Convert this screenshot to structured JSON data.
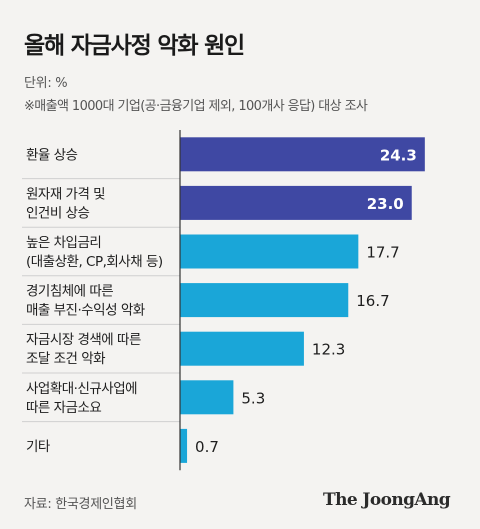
{
  "title": "올해 자금사정 악화 원인",
  "unit": "단위: %",
  "note": "※매출액 1000대 기업(공·금융기업 제외, 100개사 응답) 대상 조사",
  "source": "자료: 한국경제인협회",
  "brand": "The JoongAng",
  "colors": {
    "highlight": "#3f48a3",
    "normal": "#1aa6d8",
    "divider": "#cfcfcf",
    "axis": "#333333"
  },
  "chart_data": {
    "type": "bar",
    "orientation": "horizontal",
    "categories": [
      [
        "환율 상승"
      ],
      [
        "원자재 가격 및",
        "인건비 상승"
      ],
      [
        "높은 차입금리",
        "(대출상환, CP,회사채 등)"
      ],
      [
        "경기침체에 따른",
        "매출 부진·수익성 악화"
      ],
      [
        "자금시장 경색에 따른",
        "조달 조건 악화"
      ],
      [
        "사업확대·신규사업에",
        "따른 자금소요"
      ],
      [
        "기타"
      ]
    ],
    "values": [
      24.3,
      23.0,
      17.7,
      16.7,
      12.3,
      5.3,
      0.7
    ],
    "value_labels": [
      "24.3",
      "23.0",
      "17.7",
      "16.7",
      "12.3",
      "5.3",
      "0.7"
    ],
    "highlighted": [
      true,
      true,
      false,
      false,
      false,
      false,
      false
    ],
    "xlim": [
      0,
      26.5
    ],
    "grid": false
  }
}
